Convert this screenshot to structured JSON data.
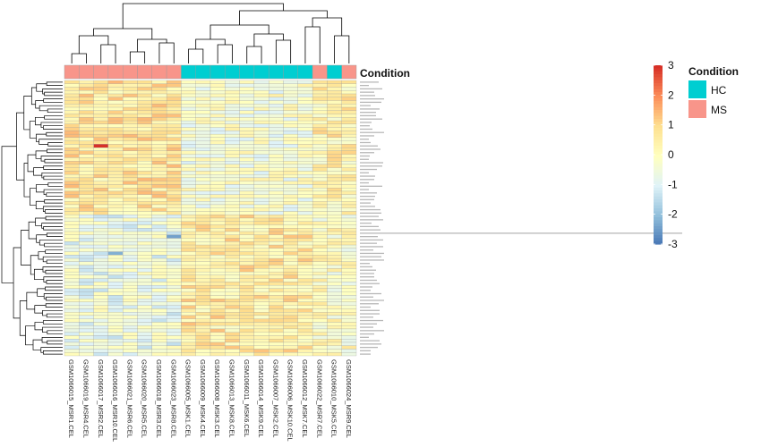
{
  "chart_data": {
    "type": "heatmap",
    "annotation_title": "Condition",
    "columns": [
      {
        "label": "GSM1066015_MSR1.CEL",
        "condition": "MS"
      },
      {
        "label": "GSM1066019_MSR4.CEL",
        "condition": "MS"
      },
      {
        "label": "GSM1066017_MSR2.CEL",
        "condition": "MS"
      },
      {
        "label": "GSM1066016_MSR10.CEL",
        "condition": "MS"
      },
      {
        "label": "GSM1066021_MSR6.CEL",
        "condition": "MS"
      },
      {
        "label": "GSM1066020_MSR5.CEL",
        "condition": "MS"
      },
      {
        "label": "GSM1066018_MSR3.CEL",
        "condition": "MS"
      },
      {
        "label": "GSM1066023_MSR8.CEL",
        "condition": "MS"
      },
      {
        "label": "GSM1066005_MSK1.CEL",
        "condition": "HC"
      },
      {
        "label": "GSM1066009_MSK4.CEL",
        "condition": "HC"
      },
      {
        "label": "GSM1066008_MSK3.CEL",
        "condition": "HC"
      },
      {
        "label": "GSM1066013_MSK8.CEL",
        "condition": "HC"
      },
      {
        "label": "GSM1066011_MSK6.CEL",
        "condition": "HC"
      },
      {
        "label": "GSM1066014_MSK9.CEL",
        "condition": "HC"
      },
      {
        "label": "GSM1066007_MSK2.CEL",
        "condition": "HC"
      },
      {
        "label": "GSM1066006_MSK10.CEL",
        "condition": "HC"
      },
      {
        "label": "GSM1066012_MSK7.CEL",
        "condition": "HC"
      },
      {
        "label": "GSM1066022_MSR7.CEL",
        "condition": "MS"
      },
      {
        "label": "GSM1066010_MSK5.CEL",
        "condition": "HC"
      },
      {
        "label": "GSM1066024_MSR9.CEL",
        "condition": "MS"
      }
    ],
    "n_rows": 82,
    "values_description": "row-scaled expression z-scores",
    "color_scale": {
      "min": -3,
      "max": 3,
      "ticks": [
        3,
        2,
        1,
        0,
        -1,
        -2,
        -3
      ],
      "low_color": "#4575b4",
      "mid_color": "#ffffbf",
      "high_color": "#d73027"
    },
    "legend": {
      "title": "Condition",
      "items": [
        {
          "label": "HC",
          "color": "#00ced1"
        },
        {
          "label": "MS",
          "color": "#f8958a"
        }
      ]
    },
    "clustered_rows": true,
    "clustered_columns": true
  }
}
